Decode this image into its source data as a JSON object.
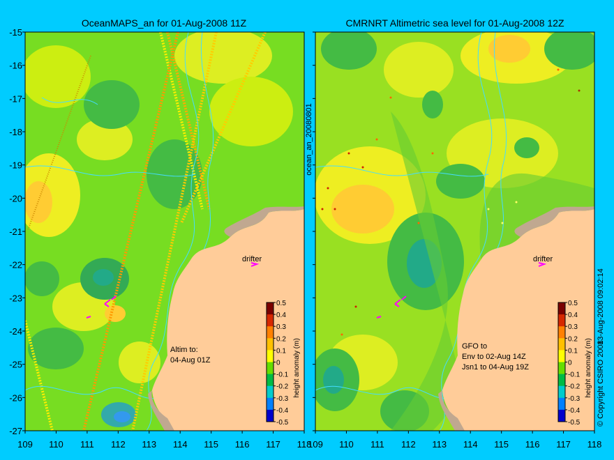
{
  "titles": {
    "left": "OceanMAPS_an for 01-Aug-2008 11Z",
    "right": "CMRNRT Altimetric sea level  for 01-Aug-2008 12Z"
  },
  "side_labels": {
    "middle": "ocean_an_20080801",
    "right_timestamp": "13-Aug-2008 09:02:14",
    "copyright": "© Copyright CSIRO 2008"
  },
  "axes": {
    "y_ticks": [
      "-15",
      "-16",
      "-17",
      "-18",
      "-19",
      "-20",
      "-21",
      "-22",
      "-23",
      "-24",
      "-25",
      "-26",
      "-27"
    ],
    "x_ticks": [
      "109",
      "110",
      "111",
      "112",
      "113",
      "114",
      "115",
      "116",
      "117",
      "118"
    ]
  },
  "left_panel": {
    "drifter_label": "drifter",
    "altim_lines": [
      "Altim to:",
      "04-Aug 01Z"
    ]
  },
  "right_panel": {
    "drifter_label": "drifter",
    "gfo_lines": [
      "GFO to",
      "Env to 02-Aug 14Z",
      "Jsn1 to 04-Aug 19Z"
    ]
  },
  "colorbar": {
    "label": "height anomaly (m)",
    "ticks": [
      "0.5",
      "0.4",
      "0.3",
      "0.2",
      "0.1",
      "0",
      "-0.1",
      "-0.2",
      "-0.3",
      "-0.4",
      "-0.5"
    ],
    "colors": [
      "#7a0000",
      "#d62800",
      "#ff8000",
      "#ffc000",
      "#ffff00",
      "#66dd00",
      "#00bb44",
      "#00cccc",
      "#0080ff",
      "#0000cc",
      "#000066"
    ]
  },
  "map_colors": {
    "land": "#ffcc99",
    "shelf": "#c0a890",
    "base_green": "#77dd22",
    "contour": "#44ddff",
    "drifter": "#ff00ff"
  }
}
